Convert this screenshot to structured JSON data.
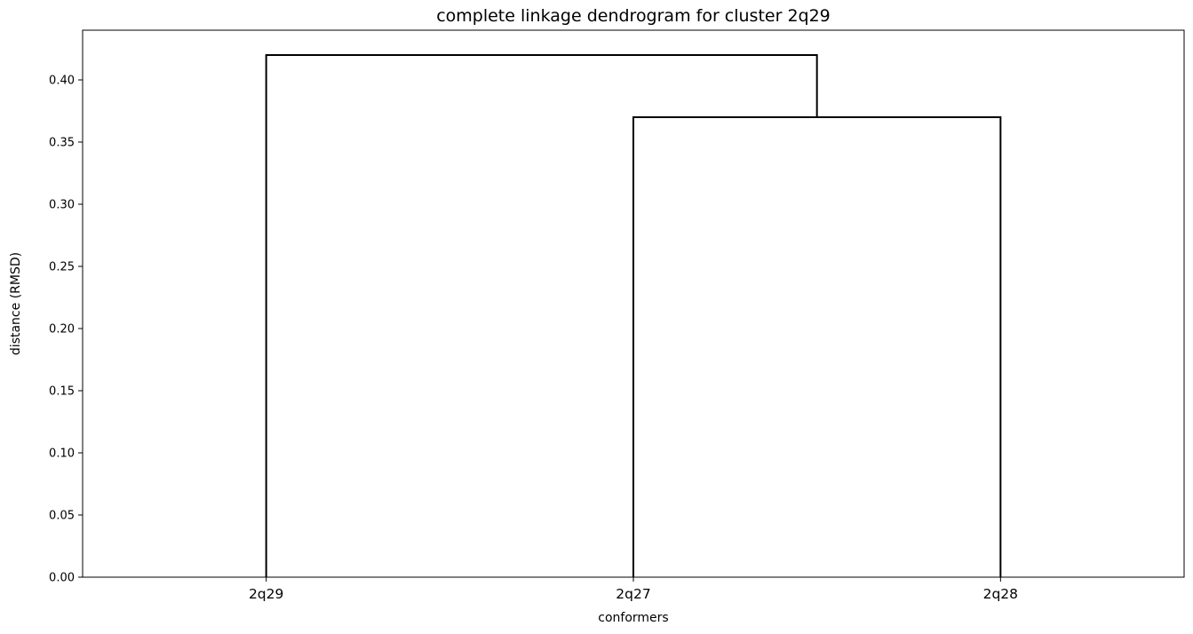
{
  "chart_data": {
    "type": "dendrogram",
    "title": "complete linkage dendrogram for cluster 2q29",
    "xlabel": "conformers",
    "ylabel": "distance (RMSD)",
    "leaves": [
      "2q29",
      "2q27",
      "2q28"
    ],
    "merges": [
      {
        "left": "2q27",
        "right": "2q28",
        "height": 0.37
      },
      {
        "left": "2q29",
        "right": "(2q27, 2q28)",
        "height": 0.42
      }
    ],
    "ylim": [
      0,
      0.44
    ],
    "yticks": [
      0.0,
      0.05,
      0.1,
      0.15,
      0.2,
      0.25,
      0.3,
      0.35,
      0.4
    ],
    "ytick_labels": [
      "0.00",
      "0.05",
      "0.10",
      "0.15",
      "0.20",
      "0.25",
      "0.30",
      "0.35",
      "0.40"
    ],
    "grid": false,
    "line_color": "#000000"
  }
}
